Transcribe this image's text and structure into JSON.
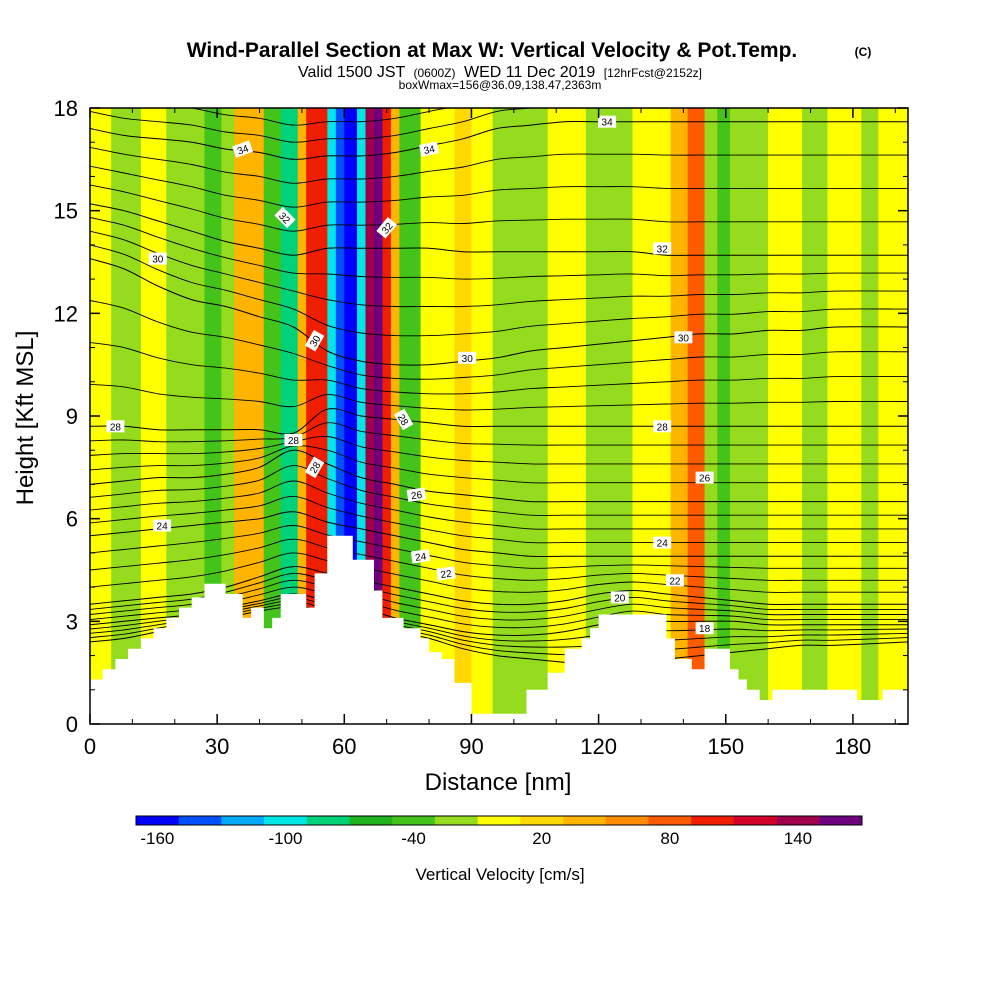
{
  "chart_data": {
    "type": "heatmap",
    "title": "Wind-Parallel Section at Max W: Vertical Velocity & Pot.Temp.",
    "title_mark": "(C)",
    "subtitle_prefix": "Valid 1500 JST",
    "subtitle_utc": "(0600Z)",
    "subtitle_date": "WED 11 Dec 2019",
    "subtitle_fcst": "[12hrFcst@2152z]",
    "subtitle_box": "boxWmax=156@36.09,138.47,2363m",
    "xlabel": "Distance [nm]",
    "ylabel": "Height [Kft MSL]",
    "xlim": [
      0,
      193
    ],
    "ylim": [
      0,
      18
    ],
    "x_ticks": [
      0,
      30,
      60,
      90,
      120,
      150,
      180
    ],
    "y_ticks": [
      0,
      3,
      6,
      9,
      12,
      15,
      18
    ],
    "colorbar": {
      "title": "Vertical Velocity [cm/s]",
      "bounds": [
        -170,
        -150,
        -130,
        -110,
        -90,
        -70,
        -50,
        -30,
        -10,
        10,
        30,
        50,
        70,
        90,
        110,
        130,
        150,
        170
      ],
      "colors": [
        "#0000ff",
        "#0050ff",
        "#00aaff",
        "#00e6e6",
        "#00d27a",
        "#1fb41f",
        "#44c41a",
        "#96dc1e",
        "#ffff00",
        "#ffd800",
        "#ffb400",
        "#ff8c00",
        "#ff5a00",
        "#f01e00",
        "#d20028",
        "#a0004b",
        "#6e0080"
      ],
      "tick_labels": [
        "-160",
        "-100",
        "-40",
        "20",
        "80",
        "140"
      ],
      "tick_values": [
        -160,
        -100,
        -40,
        20,
        80,
        140
      ]
    },
    "vertical_velocity_columns": [
      {
        "x": [
          0,
          5
        ],
        "w": 0
      },
      {
        "x": [
          5,
          12
        ],
        "w": -20
      },
      {
        "x": [
          12,
          18
        ],
        "w": 0
      },
      {
        "x": [
          18,
          27
        ],
        "w": -20
      },
      {
        "x": [
          27,
          31
        ],
        "w": -50
      },
      {
        "x": [
          31,
          34
        ],
        "w": -20
      },
      {
        "x": [
          34,
          41
        ],
        "w": 40
      },
      {
        "x": [
          41,
          45
        ],
        "w": -50
      },
      {
        "x": [
          45,
          49
        ],
        "w": -80
      },
      {
        "x": [
          49,
          51
        ],
        "w": 40
      },
      {
        "x": [
          51,
          56
        ],
        "w": 100
      },
      {
        "x": [
          56,
          58
        ],
        "w": -100
      },
      {
        "x": [
          58,
          60
        ],
        "w": -140
      },
      {
        "x": [
          60,
          63
        ],
        "w": -160
      },
      {
        "x": [
          63,
          65
        ],
        "w": -100
      },
      {
        "x": [
          65,
          67
        ],
        "w": 140
      },
      {
        "x": [
          67,
          69
        ],
        "w": 160
      },
      {
        "x": [
          69,
          71
        ],
        "w": 100
      },
      {
        "x": [
          71,
          73
        ],
        "w": 40
      },
      {
        "x": [
          73,
          78
        ],
        "w": -50
      },
      {
        "x": [
          78,
          86
        ],
        "w": 0
      },
      {
        "x": [
          86,
          90
        ],
        "w": 20
      },
      {
        "x": [
          90,
          95
        ],
        "w": 0
      },
      {
        "x": [
          95,
          108
        ],
        "w": -20
      },
      {
        "x": [
          108,
          117
        ],
        "w": 0
      },
      {
        "x": [
          117,
          128
        ],
        "w": -20
      },
      {
        "x": [
          128,
          137
        ],
        "w": 0
      },
      {
        "x": [
          137,
          141
        ],
        "w": 40
      },
      {
        "x": [
          141,
          145
        ],
        "w": 70
      },
      {
        "x": [
          145,
          148
        ],
        "w": -20
      },
      {
        "x": [
          148,
          151
        ],
        "w": -50
      },
      {
        "x": [
          151,
          160
        ],
        "w": -20
      },
      {
        "x": [
          160,
          168
        ],
        "w": 0
      },
      {
        "x": [
          168,
          174
        ],
        "w": -20
      },
      {
        "x": [
          174,
          182
        ],
        "w": 0
      },
      {
        "x": [
          182,
          186
        ],
        "w": -20
      },
      {
        "x": [
          186,
          193
        ],
        "w": 0
      }
    ],
    "terrain": [
      [
        0,
        1.3
      ],
      [
        3,
        1.3
      ],
      [
        3,
        1.6
      ],
      [
        6,
        1.6
      ],
      [
        6,
        1.9
      ],
      [
        9,
        1.9
      ],
      [
        9,
        2.2
      ],
      [
        12,
        2.2
      ],
      [
        12,
        2.5
      ],
      [
        15,
        2.5
      ],
      [
        15,
        2.8
      ],
      [
        18,
        2.8
      ],
      [
        18,
        3.1
      ],
      [
        21,
        3.1
      ],
      [
        21,
        3.4
      ],
      [
        24,
        3.4
      ],
      [
        24,
        3.7
      ],
      [
        27,
        3.7
      ],
      [
        27,
        4.1
      ],
      [
        32,
        4.1
      ],
      [
        32,
        3.8
      ],
      [
        36,
        3.8
      ],
      [
        36,
        3.1
      ],
      [
        38,
        3.1
      ],
      [
        38,
        3.4
      ],
      [
        41,
        3.4
      ],
      [
        41,
        2.8
      ],
      [
        43,
        2.8
      ],
      [
        43,
        3.1
      ],
      [
        45,
        3.1
      ],
      [
        45,
        3.8
      ],
      [
        51,
        3.8
      ],
      [
        51,
        3.4
      ],
      [
        53,
        3.4
      ],
      [
        53,
        4.4
      ],
      [
        56,
        4.4
      ],
      [
        56,
        5.5
      ],
      [
        62,
        5.5
      ],
      [
        62,
        4.8
      ],
      [
        67,
        4.8
      ],
      [
        67,
        3.9
      ],
      [
        69,
        3.9
      ],
      [
        69,
        3.1
      ],
      [
        74,
        3.1
      ],
      [
        74,
        2.8
      ],
      [
        78,
        2.8
      ],
      [
        78,
        2.5
      ],
      [
        80,
        2.5
      ],
      [
        80,
        2.1
      ],
      [
        83,
        2.1
      ],
      [
        83,
        1.9
      ],
      [
        86,
        1.9
      ],
      [
        86,
        1.2
      ],
      [
        90,
        1.2
      ],
      [
        90,
        0.3
      ],
      [
        103,
        0.3
      ],
      [
        103,
        1.0
      ],
      [
        108,
        1.0
      ],
      [
        108,
        1.5
      ],
      [
        112,
        1.5
      ],
      [
        112,
        2.2
      ],
      [
        116,
        2.2
      ],
      [
        116,
        2.5
      ],
      [
        118,
        2.5
      ],
      [
        118,
        2.8
      ],
      [
        120,
        2.8
      ],
      [
        120,
        3.2
      ],
      [
        136,
        3.2
      ],
      [
        136,
        2.5
      ],
      [
        138,
        2.5
      ],
      [
        138,
        1.9
      ],
      [
        142,
        1.9
      ],
      [
        142,
        1.6
      ],
      [
        145,
        1.6
      ],
      [
        145,
        2.2
      ],
      [
        151,
        2.2
      ],
      [
        151,
        1.6
      ],
      [
        153,
        1.6
      ],
      [
        153,
        1.3
      ],
      [
        155,
        1.3
      ],
      [
        155,
        1.0
      ],
      [
        158,
        1.0
      ],
      [
        158,
        0.7
      ],
      [
        161,
        0.7
      ],
      [
        161,
        1.0
      ],
      [
        181,
        1.0
      ],
      [
        181,
        0.7
      ],
      [
        187,
        0.7
      ],
      [
        187,
        1.0
      ],
      [
        193,
        1.0
      ]
    ],
    "theta_contours": [
      {
        "level": 18,
        "y": [
          2.4,
          2.5,
          2.7,
          2.9,
          3.1,
          3.3,
          3.4,
          3.1,
          2.9,
          2.7,
          2.5,
          2.2,
          2.0,
          1.9,
          1.8,
          1.7,
          1.8,
          1.9,
          2.0,
          2.1,
          2.2,
          2.3,
          2.3,
          2.4
        ],
        "labels": [
          {
            "x": 145,
            "y": 2.8,
            "angle": 0
          }
        ]
      },
      {
        "level": 20,
        "y": [
          2.9,
          3.0,
          3.1,
          3.2,
          3.4,
          3.6,
          3.8,
          3.6,
          3.4,
          3.1,
          2.9,
          2.7,
          2.6,
          2.6,
          2.7,
          2.9,
          3.1,
          3.0,
          3.0,
          3.0,
          2.9,
          2.9,
          2.9,
          2.9
        ],
        "labels": [
          {
            "x": 125,
            "y": 3.7,
            "angle": 0
          }
        ]
      },
      {
        "level": 22,
        "y": [
          3.5,
          3.6,
          3.7,
          3.8,
          4.0,
          4.3,
          4.6,
          4.4,
          4.2,
          4.0,
          3.8,
          3.6,
          3.5,
          3.5,
          3.6,
          3.8,
          3.9,
          3.8,
          3.7,
          3.6,
          3.5,
          3.5,
          3.5,
          3.5
        ],
        "labels": [
          {
            "x": 84,
            "y": 4.4,
            "angle": -8
          },
          {
            "x": 138,
            "y": 4.2,
            "angle": 0
          }
        ]
      },
      {
        "level": 24,
        "y": [
          5.5,
          5.6,
          5.7,
          5.8,
          5.9,
          6.0,
          6.2,
          5.9,
          5.7,
          5.5,
          5.3,
          5.1,
          5.0,
          4.9,
          4.9,
          4.9,
          4.9,
          4.9,
          4.9,
          4.9,
          4.9,
          4.9,
          4.9,
          4.9
        ],
        "labels": [
          {
            "x": 17,
            "y": 5.8,
            "angle": 0
          },
          {
            "x": 78,
            "y": 4.9,
            "angle": -8
          },
          {
            "x": 135,
            "y": 5.3,
            "angle": 0
          }
        ]
      },
      {
        "level": 26,
        "y": [
          7.0,
          7.1,
          7.2,
          7.2,
          7.3,
          7.5,
          8.0,
          7.6,
          7.2,
          7.0,
          6.8,
          6.7,
          6.6,
          6.5,
          6.5,
          6.5,
          6.5,
          6.5,
          6.5,
          6.5,
          6.5,
          6.5,
          6.5,
          6.5
        ],
        "labels": [
          {
            "x": 77,
            "y": 6.7,
            "angle": -8
          },
          {
            "x": 145,
            "y": 7.2,
            "angle": 0
          }
        ]
      },
      {
        "level": 28,
        "y": [
          8.7,
          8.7,
          8.6,
          8.6,
          8.6,
          8.6,
          8.5,
          9.2,
          9.0,
          8.9,
          8.8,
          8.7,
          8.7,
          8.7,
          8.7,
          8.7,
          8.7,
          8.7,
          8.7,
          8.7,
          8.7,
          8.7,
          8.7,
          8.7
        ],
        "labels": [
          {
            "x": 6,
            "y": 8.7,
            "angle": 0
          },
          {
            "x": 48,
            "y": 8.3,
            "angle": 0
          },
          {
            "x": 135,
            "y": 8.7,
            "angle": 0
          }
        ]
      },
      {
        "level": 30,
        "y": [
          13.6,
          13.3,
          12.8,
          12.4,
          12.2,
          11.9,
          11.6,
          10.9,
          10.6,
          10.5,
          10.5,
          10.6,
          10.7,
          10.9,
          11.0,
          11.1,
          11.2,
          11.3,
          11.4,
          11.4,
          11.5,
          11.5,
          11.6,
          11.6
        ],
        "labels": [
          {
            "x": 16,
            "y": 13.6,
            "angle": 0
          },
          {
            "x": 89,
            "y": 10.7,
            "angle": 0
          },
          {
            "x": 140,
            "y": 11.3,
            "angle": 0
          }
        ]
      },
      {
        "level": 32,
        "y": [
          15.2,
          15.0,
          14.7,
          14.4,
          14.1,
          13.9,
          13.7,
          13.9,
          13.9,
          13.9,
          13.9,
          13.8,
          13.8,
          13.8,
          13.8,
          13.8,
          13.8,
          13.7,
          13.7,
          13.7,
          13.7,
          13.7,
          13.7,
          13.7
        ],
        "labels": [
          {
            "x": 135,
            "y": 13.9,
            "angle": 0
          }
        ]
      },
      {
        "level": 34,
        "y": [
          17.4,
          17.2,
          17.1,
          17.0,
          16.8,
          16.7,
          16.5,
          16.6,
          16.6,
          16.7,
          16.9,
          17.1,
          17.4,
          17.5,
          17.6,
          17.6,
          17.6,
          17.6,
          17.6,
          17.6,
          17.6,
          17.6,
          17.6,
          17.6
        ],
        "labels": [
          {
            "x": 36,
            "y": 16.8,
            "angle": -20
          },
          {
            "x": 80,
            "y": 16.8,
            "angle": -12
          },
          {
            "x": 122,
            "y": 17.6,
            "angle": 0
          }
        ]
      }
    ],
    "theta_contour_x": [
      0,
      8,
      16,
      24,
      32,
      40,
      48,
      56,
      64,
      72,
      80,
      88,
      96,
      104,
      112,
      120,
      128,
      136,
      144,
      152,
      160,
      168,
      176,
      193
    ],
    "extra_labels": [
      {
        "text": "32",
        "x": 46,
        "y": 14.8,
        "angle": 45
      },
      {
        "text": "30",
        "x": 53,
        "y": 11.2,
        "angle": -60
      },
      {
        "text": "28",
        "x": 53,
        "y": 7.5,
        "angle": -60
      },
      {
        "text": "32",
        "x": 70,
        "y": 14.5,
        "angle": -50
      },
      {
        "text": "28",
        "x": 74,
        "y": 8.9,
        "angle": 60
      }
    ]
  }
}
